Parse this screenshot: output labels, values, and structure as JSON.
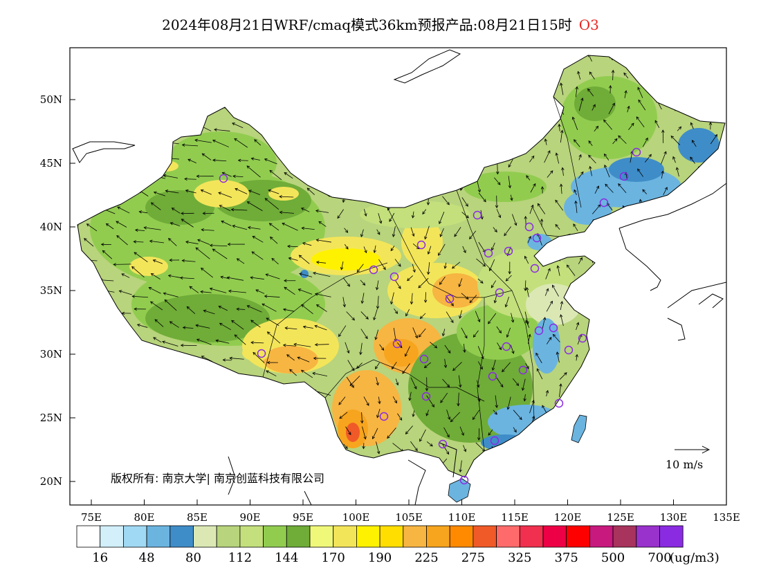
{
  "title": {
    "text": "2024年08月21日WRF/cmaq模式36km预报产品:08月21日15时",
    "species": "O3",
    "species_color": "#e8231f"
  },
  "map": {
    "lat_labels": [
      "50N",
      "45N",
      "40N",
      "35N",
      "30N",
      "25N",
      "20N"
    ],
    "lon_labels": [
      "75E",
      "80E",
      "85E",
      "90E",
      "95E",
      "100E",
      "105E",
      "110E",
      "115E",
      "120E",
      "125E",
      "130E",
      "135E"
    ],
    "copyright": "版权所有: 南京大学| 南京创蓝科技有限公司",
    "wind_scale_label": "10 m/s"
  },
  "legend": {
    "colors": [
      "#ffffff",
      "#d2effa",
      "#a0d9f3",
      "#6bb4e0",
      "#3f8dc8",
      "#dbe8b4",
      "#b8d47c",
      "#c3e07c",
      "#91cc4f",
      "#6fac38",
      "#f0f87a",
      "#f3e55a",
      "#fff200",
      "#ffde00",
      "#f7b542",
      "#f7a51e",
      "#ff8a00",
      "#f05a28",
      "#ff6b6b",
      "#f0304e",
      "#ee0046",
      "#ff0000",
      "#c8197e",
      "#a8335c",
      "#9932cc",
      "#8a2be2"
    ],
    "labels": [
      "16",
      "48",
      "80",
      "112",
      "144",
      "170",
      "190",
      "225",
      "275",
      "325",
      "375",
      "500",
      "700"
    ],
    "unit": "(ug/m3)"
  }
}
